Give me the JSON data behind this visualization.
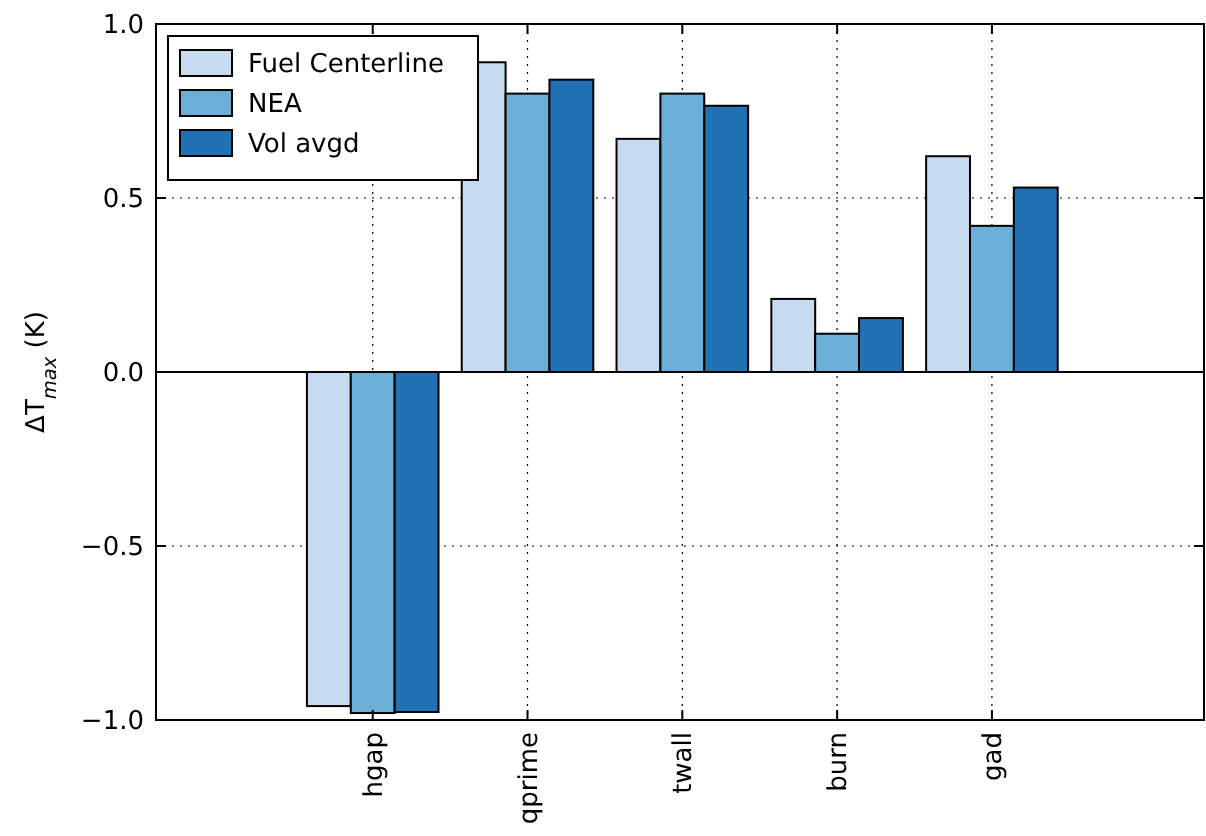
{
  "chart_data": {
    "type": "bar",
    "ylabel": "ΔT$_{max}$ (K)",
    "categories": [
      "hgap",
      "qprime",
      "twall",
      "burn",
      "gad"
    ],
    "series": [
      {
        "name": "Fuel Centerline",
        "color": "#c6dbef",
        "values": [
          -0.96,
          0.89,
          0.67,
          0.21,
          0.62
        ]
      },
      {
        "name": "NEA",
        "color": "#6baed6",
        "values": [
          -0.98,
          0.8,
          0.8,
          0.11,
          0.42
        ]
      },
      {
        "name": "Vol avgd",
        "color": "#2171b5",
        "values": [
          -0.977,
          0.84,
          0.765,
          0.155,
          0.53
        ]
      }
    ],
    "ylim": [
      -1,
      1
    ],
    "yticks": [
      {
        "value": -1,
        "label": "−1.0"
      },
      {
        "value": -0.5,
        "label": "−0.5"
      },
      {
        "value": 0,
        "label": "0.0"
      },
      {
        "value": 0.5,
        "label": "0.5"
      },
      {
        "value": 1,
        "label": "1.0"
      }
    ],
    "ref_lines": [
      {
        "axis": "y",
        "value": 0,
        "label": null,
        "color": "#000000"
      }
    ],
    "grid": true,
    "legend": "top left"
  }
}
